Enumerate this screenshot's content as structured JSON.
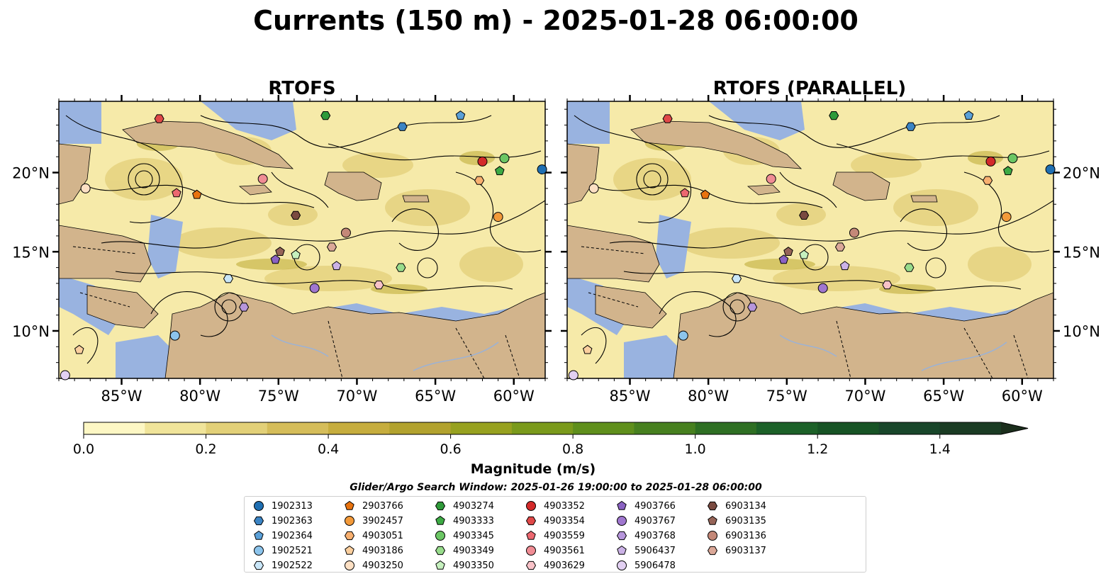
{
  "title": "Currents (150 m) - 2025-01-28 06:00:00",
  "panels": [
    {
      "title": "RTOFS"
    },
    {
      "title": "RTOFS (PARALLEL)"
    }
  ],
  "axes": {
    "x_ticks": [
      "85°W",
      "80°W",
      "75°W",
      "70°W",
      "65°W",
      "60°W"
    ],
    "y_ticks": [
      "20°N",
      "15°N",
      "10°N"
    ]
  },
  "colorbar": {
    "label": "Magnitude (m/s)",
    "ticks": [
      "0.0",
      "0.2",
      "0.4",
      "0.6",
      "0.8",
      "1.0",
      "1.2",
      "1.4"
    ],
    "colors": [
      "#fdf7c4",
      "#f0e49a",
      "#e2d078",
      "#d5bd5a",
      "#c6ad3e",
      "#b2a22e",
      "#97a11f",
      "#7a9a1b",
      "#5f8f1c",
      "#47801f",
      "#2e6f23",
      "#1c6128",
      "#175325",
      "#18462a",
      "#1a3b23",
      "#1b2e1c"
    ]
  },
  "search_window": "Glider/Argo Search Window: 2025-01-26 19:00:00 to 2025-01-28 06:00:00",
  "colors": {
    "land": "#d2b48c",
    "water": "#99b3e0",
    "shallow": "#f8f0bd"
  },
  "chart_data": {
    "type": "map",
    "extent": {
      "lon": [
        -89,
        -58
      ],
      "lat": [
        7,
        24.5
      ]
    },
    "grid": false,
    "legend_placement": "bottom-center",
    "floats": [
      {
        "id": "1902313",
        "marker": "circle",
        "color": "#1f6fb2",
        "lon": -58.2,
        "lat": 20.2
      },
      {
        "id": "1902363",
        "marker": "hexagon",
        "color": "#3b84c4",
        "lon": -67.1,
        "lat": 22.9
      },
      {
        "id": "1902364",
        "marker": "pentagon",
        "color": "#5aa0d8",
        "lon": -63.4,
        "lat": 23.6
      },
      {
        "id": "1902521",
        "marker": "circle",
        "color": "#8cc4ec",
        "lon": -81.6,
        "lat": 9.7
      },
      {
        "id": "1902522",
        "marker": "hexagon",
        "color": "#c9e6f8",
        "lon": -78.2,
        "lat": 13.3
      },
      {
        "id": "2903766",
        "marker": "pentagon",
        "color": "#e8730f",
        "lon": -80.2,
        "lat": 18.6
      },
      {
        "id": "3902457",
        "marker": "circle",
        "color": "#f39a3a",
        "lon": -61.0,
        "lat": 17.2
      },
      {
        "id": "4903051",
        "marker": "hexagon",
        "color": "#f8b070",
        "lon": -62.2,
        "lat": 19.5
      },
      {
        "id": "4903186",
        "marker": "pentagon",
        "color": "#fbcf9e",
        "lon": -87.7,
        "lat": 8.8
      },
      {
        "id": "4903250",
        "marker": "circle",
        "color": "#fde0c4",
        "lon": -87.3,
        "lat": 19.0
      },
      {
        "id": "4903274",
        "marker": "hexagon",
        "color": "#2f9a3a",
        "lon": -72.0,
        "lat": 23.6
      },
      {
        "id": "4903333",
        "marker": "pentagon",
        "color": "#3daa44",
        "lon": -60.9,
        "lat": 20.1
      },
      {
        "id": "4903345",
        "marker": "circle",
        "color": "#6bc664",
        "lon": -60.6,
        "lat": 20.9
      },
      {
        "id": "4903349",
        "marker": "hexagon",
        "color": "#98dc8c",
        "lon": -67.2,
        "lat": 14.0
      },
      {
        "id": "4903350",
        "marker": "pentagon",
        "color": "#c6f0be",
        "lon": -73.9,
        "lat": 14.8
      },
      {
        "id": "4903352",
        "marker": "circle",
        "color": "#d32a2a",
        "lon": -62.0,
        "lat": 20.7
      },
      {
        "id": "4903354",
        "marker": "hexagon",
        "color": "#e04848",
        "lon": -82.6,
        "lat": 23.4
      },
      {
        "id": "4903559",
        "marker": "pentagon",
        "color": "#ec6870",
        "lon": -81.5,
        "lat": 18.7
      },
      {
        "id": "4903561",
        "marker": "circle",
        "color": "#f08c94",
        "lon": -76.0,
        "lat": 19.6
      },
      {
        "id": "4903629",
        "marker": "hexagon",
        "color": "#f8c2c8",
        "lon": -68.6,
        "lat": 12.9
      },
      {
        "id": "4903766",
        "marker": "pentagon",
        "color": "#8a62c2",
        "lon": -75.2,
        "lat": 14.5
      },
      {
        "id": "4903767",
        "marker": "circle",
        "color": "#a077cf",
        "lon": -72.7,
        "lat": 12.7
      },
      {
        "id": "4903768",
        "marker": "hexagon",
        "color": "#b796dc",
        "lon": -77.2,
        "lat": 11.5
      },
      {
        "id": "5906437",
        "marker": "pentagon",
        "color": "#cbb2e6",
        "lon": -71.3,
        "lat": 14.1
      },
      {
        "id": "5906478",
        "marker": "circle",
        "color": "#e2d0f2",
        "lon": -88.6,
        "lat": 7.2
      },
      {
        "id": "6903134",
        "marker": "hexagon",
        "color": "#7a4a40",
        "lon": -73.9,
        "lat": 17.3
      },
      {
        "id": "6903135",
        "marker": "pentagon",
        "color": "#966458",
        "lon": -74.9,
        "lat": 15.0
      },
      {
        "id": "6903136",
        "marker": "circle",
        "color": "#c48878",
        "lon": -70.7,
        "lat": 16.2
      },
      {
        "id": "6903137",
        "marker": "hexagon",
        "color": "#dba898",
        "lon": -71.6,
        "lat": 15.3
      }
    ]
  }
}
